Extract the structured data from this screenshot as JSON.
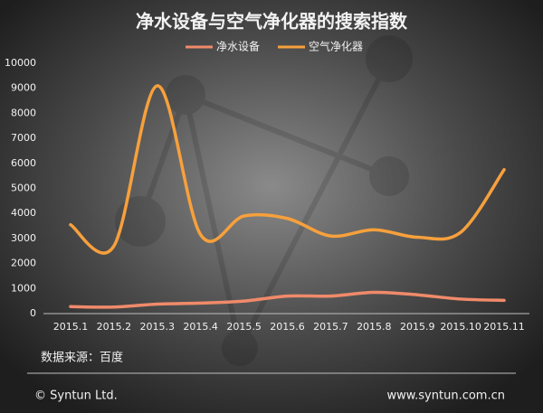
{
  "chart_data": {
    "type": "line",
    "title": "净水设备与空气净化器的搜索指数",
    "categories": [
      "2015.1",
      "2015.2",
      "2015.3",
      "2015.4",
      "2015.5",
      "2015.6",
      "2015.7",
      "2015.8",
      "2015.9",
      "2015.10",
      "2015.11"
    ],
    "series": [
      {
        "name": "净水设备",
        "color": "#f08a6a",
        "values": [
          280,
          260,
          380,
          420,
          500,
          700,
          700,
          850,
          750,
          580,
          530
        ]
      },
      {
        "name": "空气净化器",
        "color": "#f7a03c",
        "values": [
          3550,
          2700,
          9100,
          3150,
          3900,
          3800,
          3100,
          3350,
          3050,
          3250,
          5750
        ]
      }
    ],
    "ylim": [
      0,
      10000
    ],
    "yticks": [
      0,
      1000,
      2000,
      3000,
      4000,
      5000,
      6000,
      7000,
      8000,
      9000,
      10000
    ],
    "grid": false,
    "smooth": true,
    "legend": "top",
    "source": "数据来源：百度",
    "copyright": "© Syntun Ltd.",
    "website": "www.syntun.com.cn"
  }
}
